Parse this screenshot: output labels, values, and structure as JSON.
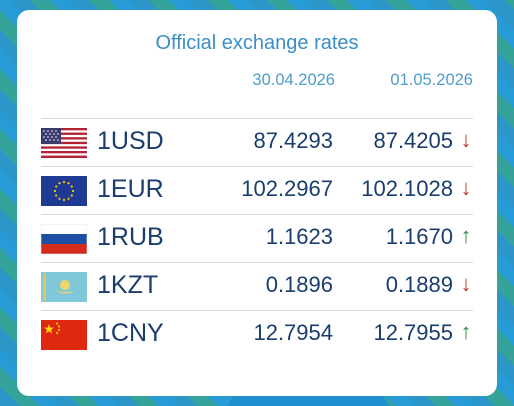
{
  "title": "Official exchange rates",
  "dates": [
    "30.04.2026",
    "01.05.2026"
  ],
  "rates": [
    {
      "code": "1USD",
      "flag": "us-flag-icon",
      "v1": "87.4293",
      "v2": "87.4205",
      "trend": "down",
      "arrow": "↓"
    },
    {
      "code": "1EUR",
      "flag": "eu-flag-icon",
      "v1": "102.2967",
      "v2": "102.1028",
      "trend": "down",
      "arrow": "↓"
    },
    {
      "code": "1RUB",
      "flag": "ru-flag-icon",
      "v1": "1.1623",
      "v2": "1.1670",
      "trend": "up",
      "arrow": "↑"
    },
    {
      "code": "1KZT",
      "flag": "kz-flag-icon",
      "v1": "0.1896",
      "v2": "0.1889",
      "trend": "down",
      "arrow": "↓"
    },
    {
      "code": "1CNY",
      "flag": "cn-flag-icon",
      "v1": "12.7954",
      "v2": "12.7955",
      "trend": "up",
      "arrow": "↑"
    }
  ]
}
